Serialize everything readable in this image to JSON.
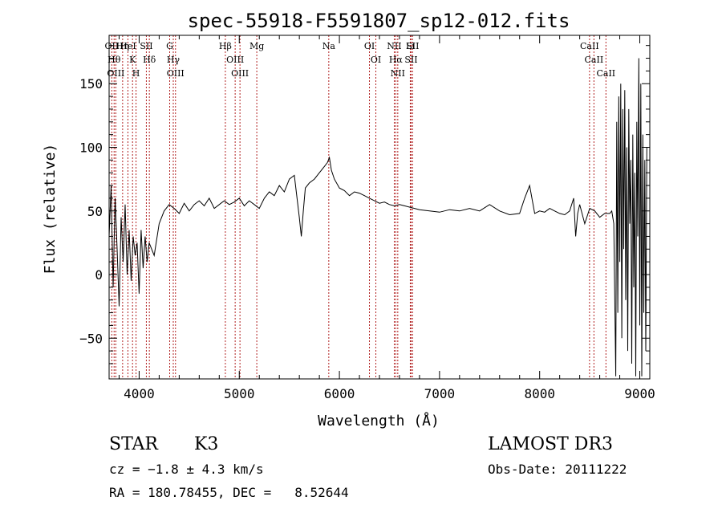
{
  "chart_data": {
    "type": "line",
    "title": "spec-55918-F5591807_sp12-012.fits",
    "xlabel": "Wavelength (Å)",
    "ylabel": "Flux (relative)",
    "xlim": [
      3700,
      9100
    ],
    "ylim": [
      -82,
      188
    ],
    "xticks": [
      4000,
      5000,
      6000,
      7000,
      8000,
      9000
    ],
    "yticks": [
      -50,
      0,
      50,
      100,
      150
    ],
    "grid": false,
    "line_color": "#000000",
    "marker_color": "#b22222",
    "series": [
      {
        "name": "flux",
        "x": [
          3700,
          3720,
          3740,
          3760,
          3780,
          3800,
          3820,
          3840,
          3860,
          3880,
          3900,
          3920,
          3940,
          3960,
          3980,
          4000,
          4020,
          4040,
          4060,
          4080,
          4100,
          4150,
          4200,
          4250,
          4300,
          4350,
          4400,
          4450,
          4500,
          4550,
          4600,
          4650,
          4700,
          4750,
          4800,
          4850,
          4900,
          4950,
          5000,
          5050,
          5100,
          5150,
          5200,
          5250,
          5300,
          5350,
          5400,
          5450,
          5500,
          5550,
          5600,
          5620,
          5640,
          5660,
          5700,
          5750,
          5800,
          5850,
          5880,
          5900,
          5920,
          5950,
          6000,
          6050,
          6100,
          6150,
          6200,
          6250,
          6300,
          6350,
          6400,
          6450,
          6500,
          6550,
          6600,
          6650,
          6700,
          6750,
          6800,
          6900,
          7000,
          7100,
          7200,
          7300,
          7400,
          7500,
          7600,
          7700,
          7800,
          7850,
          7900,
          7950,
          8000,
          8050,
          8100,
          8150,
          8200,
          8250,
          8300,
          8340,
          8360,
          8380,
          8400,
          8450,
          8500,
          8550,
          8600,
          8650,
          8700,
          8720,
          8740,
          8760,
          8770,
          8780,
          8790,
          8800,
          8810,
          8820,
          8830,
          8840,
          8850,
          8860,
          8870,
          8880,
          8890,
          8900,
          8910,
          8920,
          8930,
          8940,
          8950,
          8960,
          8970,
          8980,
          8990,
          9000,
          9010,
          9020,
          9030,
          9040,
          9050,
          9060,
          9070
        ],
        "values": [
          30,
          70,
          -10,
          60,
          20,
          -25,
          45,
          10,
          55,
          0,
          35,
          -5,
          30,
          15,
          25,
          -15,
          35,
          5,
          30,
          10,
          25,
          15,
          40,
          50,
          55,
          52,
          48,
          56,
          50,
          55,
          58,
          54,
          60,
          52,
          55,
          58,
          55,
          57,
          60,
          54,
          58,
          55,
          52,
          60,
          65,
          62,
          70,
          65,
          75,
          78,
          45,
          30,
          50,
          68,
          72,
          75,
          80,
          85,
          88,
          92,
          82,
          75,
          68,
          66,
          62,
          65,
          64,
          62,
          60,
          58,
          56,
          57,
          55,
          54,
          55,
          54,
          53,
          52,
          51,
          50,
          49,
          51,
          50,
          52,
          50,
          55,
          50,
          47,
          48,
          60,
          70,
          48,
          50,
          49,
          52,
          50,
          48,
          47,
          50,
          60,
          30,
          48,
          55,
          40,
          52,
          50,
          45,
          48,
          48,
          50,
          40,
          -80,
          120,
          -30,
          140,
          10,
          150,
          -50,
          130,
          20,
          145,
          -20,
          100,
          -60,
          130,
          40,
          90,
          -70,
          110,
          -10,
          80,
          -80,
          120,
          30,
          170,
          -40,
          150,
          -80,
          110,
          -30,
          90,
          -60,
          100
        ]
      }
    ],
    "line_markers": [
      {
        "label": "OII",
        "x": 3727
      },
      {
        "label": "Hθ",
        "x": 3750
      },
      {
        "label": "OIII",
        "x": 3767
      },
      {
        "label": "Hη",
        "x": 3835
      },
      {
        "label": "HeI",
        "x": 3888
      },
      {
        "label": "K",
        "x": 3934
      },
      {
        "label": "H",
        "x": 3969
      },
      {
        "label": "SII",
        "x": 4072
      },
      {
        "label": "Hδ",
        "x": 4102
      },
      {
        "label": "G",
        "x": 4305
      },
      {
        "label": "Hγ",
        "x": 4341
      },
      {
        "label": "OIII",
        "x": 4363
      },
      {
        "label": "Hβ",
        "x": 4861
      },
      {
        "label": "OIII",
        "x": 4959
      },
      {
        "label": "OIII",
        "x": 5007
      },
      {
        "label": "Mg",
        "x": 5175
      },
      {
        "label": "Na",
        "x": 5894
      },
      {
        "label": "OI",
        "x": 6300
      },
      {
        "label": "OI",
        "x": 6364
      },
      {
        "label": "NII",
        "x": 6548
      },
      {
        "label": "Hα",
        "x": 6563
      },
      {
        "label": "NII",
        "x": 6583
      },
      {
        "label": "Li",
        "x": 6708
      },
      {
        "label": "SII",
        "x": 6716
      },
      {
        "label": "SII",
        "x": 6731
      },
      {
        "label": "CaII",
        "x": 8498
      },
      {
        "label": "CaII",
        "x": 8542
      },
      {
        "label": "CaII",
        "x": 8662
      }
    ]
  },
  "info": {
    "object_class": "STAR",
    "subclass": "K3",
    "redshift_text": "cz = −1.8 ± 4.3 km/s",
    "coords_text": "RA = 180.78455, DEC =   8.52644",
    "survey": "LAMOST DR3",
    "obs_date": "Obs-Date: 20111222"
  }
}
